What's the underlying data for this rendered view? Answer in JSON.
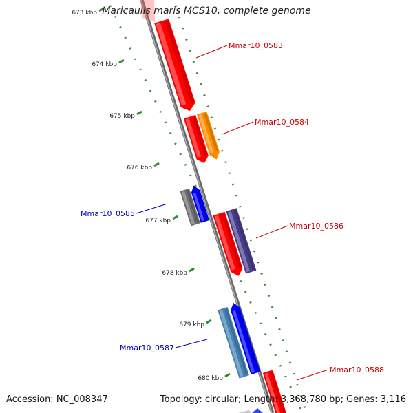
{
  "title": "Maricaulis maris MCS10, complete genome",
  "footer": {
    "accession": "Accession: NC_008347",
    "stats": "Topology: circular; Length: 3,368,780 bp; Genes: 3,116"
  },
  "colors": {
    "backbone": "#888888",
    "tick": "#2e8b2e",
    "ruler_text": "#222222",
    "forward_label": "#cc0000",
    "reverse_label": "#0000bb",
    "red": "#ff0000",
    "orange": "#ff8c00",
    "blue": "#0000ff",
    "gray": "#6e6e6e",
    "slate": "#483d8b",
    "steelblue": "#4682b4"
  },
  "ruler": [
    "673 kbp",
    "674 kbp",
    "675 kbp",
    "676 kbp",
    "677 kbp",
    "678 kbp",
    "679 kbp",
    "680 kbp"
  ],
  "genes": [
    {
      "id": "Mmar10_0583",
      "strand": "+",
      "color": "red"
    },
    {
      "id": "Mmar10_0584",
      "strand": "+",
      "color": "orange"
    },
    {
      "id": "Mmar10_0585",
      "strand": "-",
      "color": "blue"
    },
    {
      "id": "Mmar10_0586",
      "strand": "+",
      "color": "slate"
    },
    {
      "id": "Mmar10_0587",
      "strand": "-",
      "color": "blue"
    },
    {
      "id": "Mmar10_0588",
      "strand": "+",
      "color": "red"
    }
  ],
  "features": [
    {
      "name": "red-gene-0583",
      "color": "red",
      "shape": "arrow"
    },
    {
      "name": "red-gene-0584",
      "color": "red",
      "shape": "arrow"
    },
    {
      "name": "orange-gene-0584",
      "color": "orange",
      "shape": "arrow"
    },
    {
      "name": "gray-gene-0585",
      "color": "gray",
      "shape": "box"
    },
    {
      "name": "blue-gene-0585",
      "color": "blue",
      "shape": "arrow"
    },
    {
      "name": "red-gene-0586",
      "color": "red",
      "shape": "arrow"
    },
    {
      "name": "slate-gene-0586",
      "color": "slate",
      "shape": "box"
    },
    {
      "name": "steelblue-gene-0587",
      "color": "steelblue",
      "shape": "box"
    },
    {
      "name": "blue-gene-0587",
      "color": "blue",
      "shape": "arrow"
    },
    {
      "name": "red-gene-0588",
      "color": "red",
      "shape": "box"
    }
  ]
}
